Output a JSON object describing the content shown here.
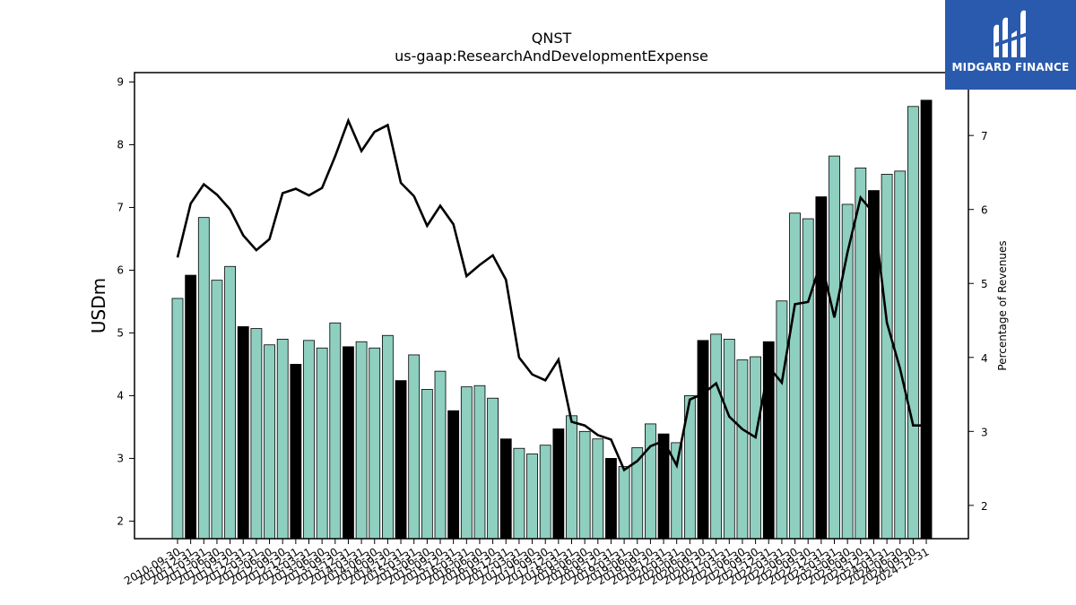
{
  "brand": {
    "name": "MIDGARD FINANCE",
    "logo_icon": "midgard-m-logo-icon",
    "color": "#2a5aad"
  },
  "chart_data": {
    "type": "bar",
    "title": "QNST",
    "subtitle": "us-gaap:ResearchAndDevelopmentExpense",
    "ylabel": "USDm",
    "y2label": "Percentage of Revenues",
    "ylim": [
      1.72,
      9.15
    ],
    "y2lim": [
      1.55,
      7.85
    ],
    "yticks": [
      2,
      3,
      4,
      5,
      6,
      7,
      8,
      9
    ],
    "y2ticks": [
      2,
      3,
      4,
      5,
      6,
      7
    ],
    "bar_color": "#8ecfc0",
    "highlight_color": "#000000",
    "line_color": "#000000",
    "grid": false,
    "categories": [
      "2010-09-30",
      "2010-12-31",
      "2011-03-31",
      "2011-06-30",
      "2011-09-30",
      "2011-12-31",
      "2012-03-31",
      "2012-06-30",
      "2012-09-30",
      "2012-12-31",
      "2013-03-31",
      "2013-06-30",
      "2013-09-30",
      "2013-12-31",
      "2014-03-31",
      "2014-06-30",
      "2014-09-30",
      "2014-12-31",
      "2015-03-31",
      "2015-06-30",
      "2015-09-30",
      "2015-12-31",
      "2016-03-31",
      "2016-06-30",
      "2016-09-30",
      "2016-12-31",
      "2017-03-31",
      "2017-06-30",
      "2017-09-30",
      "2017-12-31",
      "2018-03-31",
      "2018-06-30",
      "2018-09-30",
      "2018-12-31",
      "2019-03-31",
      "2019-06-30",
      "2019-09-30",
      "2019-12-31",
      "2020-03-31",
      "2020-06-30",
      "2020-09-30",
      "2020-12-31",
      "2021-03-31",
      "2021-06-30",
      "2021-09-30",
      "2021-12-31",
      "2022-03-31",
      "2022-06-30",
      "2022-09-30",
      "2022-12-31",
      "2023-03-31",
      "2023-06-30",
      "2023-09-30",
      "2023-12-31",
      "2024-03-31",
      "2024-06-30",
      "2024-09-30",
      "2024-12-31"
    ],
    "series": [
      {
        "values": [
          5.55,
          5.92,
          6.84,
          5.84,
          6.06,
          5.1,
          5.07,
          4.81,
          4.9,
          4.5,
          4.88,
          4.76,
          5.16,
          4.78,
          4.86,
          4.76,
          4.96,
          4.24,
          4.65,
          4.1,
          4.39,
          3.76,
          4.14,
          4.16,
          3.96,
          3.31,
          3.16,
          3.07,
          3.21,
          3.47,
          3.68,
          3.43,
          3.31,
          3.0,
          2.87,
          3.17,
          3.55,
          3.39,
          3.25,
          4.0,
          4.88,
          4.98,
          4.9,
          4.57,
          4.62,
          4.86,
          5.51,
          6.91,
          6.82,
          7.17,
          7.82,
          7.05,
          7.63,
          7.27,
          7.53,
          7.58,
          8.61,
          8.71
        ],
        "highlight": [
          false,
          true,
          false,
          false,
          false,
          true,
          false,
          false,
          false,
          true,
          false,
          false,
          false,
          true,
          false,
          false,
          false,
          true,
          false,
          false,
          false,
          true,
          false,
          false,
          false,
          true,
          false,
          false,
          false,
          true,
          false,
          false,
          false,
          true,
          false,
          false,
          false,
          true,
          false,
          false,
          true,
          false,
          false,
          false,
          false,
          true,
          false,
          false,
          false,
          true,
          false,
          false,
          false,
          true,
          false,
          false,
          false,
          true
        ]
      },
      {
        "axis": "right",
        "type": "line",
        "values": [
          5.35,
          6.08,
          6.34,
          6.2,
          6.0,
          5.65,
          5.45,
          5.6,
          6.22,
          6.28,
          6.19,
          6.29,
          6.72,
          7.2,
          6.79,
          7.05,
          7.14,
          6.36,
          6.18,
          5.78,
          6.05,
          5.8,
          5.1,
          5.25,
          5.38,
          5.05,
          4.0,
          3.77,
          3.69,
          3.97,
          3.13,
          3.08,
          2.95,
          2.89,
          2.48,
          2.6,
          2.8,
          2.87,
          2.54,
          3.43,
          3.51,
          3.65,
          3.2,
          3.03,
          2.92,
          3.87,
          3.66,
          4.72,
          4.75,
          5.3,
          4.54,
          5.42,
          6.16,
          5.95,
          4.47,
          3.85,
          3.08,
          3.08
        ]
      }
    ]
  }
}
